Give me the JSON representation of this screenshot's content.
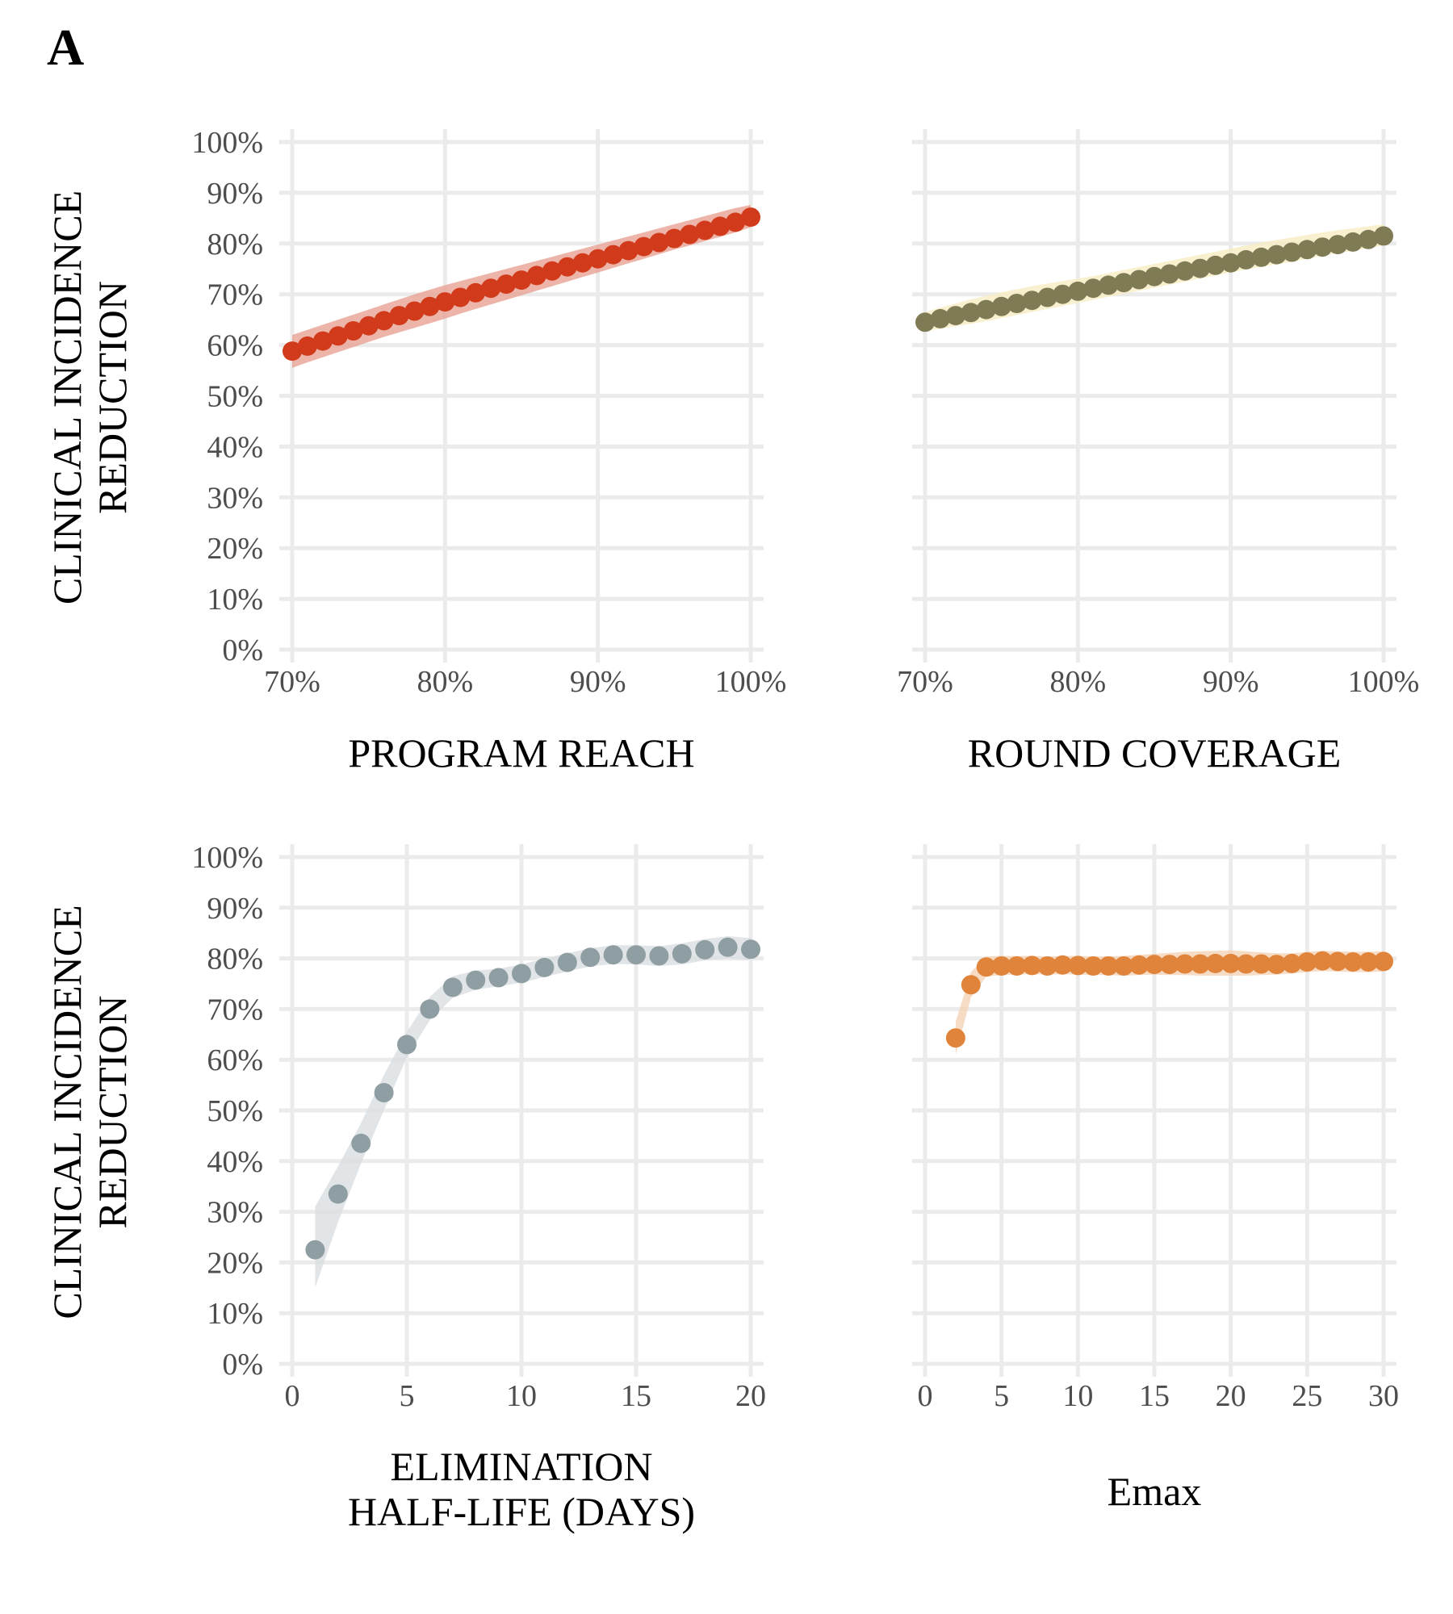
{
  "figure": {
    "panel_label": "A",
    "ylabel_lines": [
      "CLINICAL INCIDENCE",
      "REDUCTION"
    ]
  },
  "chart_data": [
    {
      "id": "program-reach",
      "type": "scatter",
      "xlabel": [
        "PROGRAM REACH"
      ],
      "ylabel": [
        "CLINICAL INCIDENCE",
        "REDUCTION"
      ],
      "xlim": [
        70,
        100
      ],
      "ylim": [
        0,
        100
      ],
      "x_ticks": [
        70,
        80,
        90,
        100
      ],
      "x_tick_labels": [
        "70%",
        "80%",
        "90%",
        "100%"
      ],
      "y_ticks": [
        0,
        10,
        20,
        30,
        40,
        50,
        60,
        70,
        80,
        90,
        100
      ],
      "y_tick_labels": [
        "0%",
        "10%",
        "20%",
        "30%",
        "40%",
        "50%",
        "60%",
        "70%",
        "80%",
        "90%",
        "100%"
      ],
      "grid": true,
      "color": "#d13a1a",
      "band_color": "#e8a293",
      "x": [
        70,
        71,
        72,
        73,
        74,
        75,
        76,
        77,
        78,
        79,
        80,
        81,
        82,
        83,
        84,
        85,
        86,
        87,
        88,
        89,
        90,
        91,
        92,
        93,
        94,
        95,
        96,
        97,
        98,
        99,
        100
      ],
      "y": [
        58.8,
        59.8,
        60.8,
        61.8,
        62.8,
        63.8,
        64.8,
        65.8,
        66.7,
        67.6,
        68.5,
        69.4,
        70.3,
        71.2,
        72.0,
        72.8,
        73.7,
        74.6,
        75.4,
        76.2,
        77.0,
        77.8,
        78.6,
        79.4,
        80.2,
        81.0,
        81.8,
        82.6,
        83.4,
        84.2,
        85.2
      ],
      "lower": [
        55.5,
        56.6,
        57.6,
        58.6,
        59.6,
        60.6,
        61.6,
        62.5,
        63.4,
        64.3,
        65.2,
        66.2,
        67.1,
        68.0,
        68.9,
        69.8,
        70.7,
        71.6,
        72.5,
        73.4,
        74.3,
        75.2,
        76.1,
        77.0,
        77.9,
        78.8,
        79.6,
        80.5,
        81.3,
        82.2,
        83.2
      ],
      "upper": [
        62.0,
        63.0,
        64.0,
        65.0,
        66.0,
        67.0,
        68.0,
        69.0,
        70.0,
        70.9,
        71.8,
        72.6,
        73.4,
        74.2,
        75.0,
        75.8,
        76.6,
        77.4,
        78.2,
        79.0,
        79.8,
        80.6,
        81.4,
        82.2,
        83.0,
        83.8,
        84.6,
        85.4,
        86.2,
        87.0,
        87.6
      ]
    },
    {
      "id": "round-coverage",
      "type": "scatter",
      "xlabel": [
        "ROUND COVERAGE"
      ],
      "ylabel": [],
      "xlim": [
        70,
        100
      ],
      "ylim": [
        0,
        100
      ],
      "x_ticks": [
        70,
        80,
        90,
        100
      ],
      "x_tick_labels": [
        "70%",
        "80%",
        "90%",
        "100%"
      ],
      "y_ticks": [
        0,
        10,
        20,
        30,
        40,
        50,
        60,
        70,
        80,
        90,
        100
      ],
      "y_tick_labels": [],
      "grid": true,
      "color": "#7f7b55",
      "band_color": "#f7ecc4",
      "x": [
        70,
        71,
        72,
        73,
        74,
        75,
        76,
        77,
        78,
        79,
        80,
        81,
        82,
        83,
        84,
        85,
        86,
        87,
        88,
        89,
        90,
        91,
        92,
        93,
        94,
        95,
        96,
        97,
        98,
        99,
        100
      ],
      "y": [
        64.5,
        65.2,
        65.8,
        66.4,
        67.0,
        67.6,
        68.2,
        68.8,
        69.4,
        70.0,
        70.6,
        71.2,
        71.8,
        72.3,
        72.9,
        73.5,
        74.0,
        74.6,
        75.1,
        75.7,
        76.2,
        76.8,
        77.3,
        77.8,
        78.3,
        78.8,
        79.3,
        79.8,
        80.3,
        80.8,
        81.5
      ],
      "lower": [
        62.8,
        63.2,
        63.7,
        64.2,
        64.7,
        65.3,
        65.9,
        66.5,
        67.1,
        67.7,
        68.3,
        68.9,
        69.5,
        70.1,
        70.7,
        71.3,
        71.9,
        72.5,
        73.1,
        73.7,
        74.3,
        74.9,
        75.4,
        75.9,
        76.4,
        77.0,
        77.6,
        78.1,
        78.6,
        79.1,
        79.6
      ],
      "upper": [
        66.5,
        67.4,
        68.2,
        69.0,
        69.7,
        70.4,
        71.0,
        71.6,
        72.1,
        72.6,
        73.1,
        73.6,
        74.2,
        74.8,
        75.4,
        76.0,
        76.6,
        77.2,
        77.8,
        78.4,
        79.0,
        79.6,
        80.2,
        80.7,
        81.2,
        81.7,
        82.2,
        82.6,
        83.0,
        83.4,
        83.8
      ]
    },
    {
      "id": "elimination-half-life",
      "type": "scatter",
      "xlabel": [
        "ELIMINATION",
        "HALF-LIFE  (DAYS)"
      ],
      "ylabel": [
        "CLINICAL INCIDENCE",
        "REDUCTION"
      ],
      "xlim": [
        0,
        20
      ],
      "ylim": [
        0,
        100
      ],
      "x_ticks": [
        0,
        5,
        10,
        15,
        20
      ],
      "x_tick_labels": [
        "0",
        "5",
        "10",
        "15",
        "20"
      ],
      "y_ticks": [
        0,
        10,
        20,
        30,
        40,
        50,
        60,
        70,
        80,
        90,
        100
      ],
      "y_tick_labels": [
        "0%",
        "10%",
        "20%",
        "30%",
        "40%",
        "50%",
        "60%",
        "70%",
        "80%",
        "90%",
        "100%"
      ],
      "grid": true,
      "color": "#8f9ea3",
      "band_color": "#d9dfe1",
      "x": [
        1,
        2,
        3,
        4,
        5,
        6,
        7,
        8,
        9,
        10,
        11,
        12,
        13,
        14,
        15,
        16,
        17,
        18,
        19,
        20
      ],
      "y": [
        22.5,
        33.5,
        43.5,
        53.5,
        63.0,
        70.0,
        74.3,
        75.7,
        76.2,
        77.0,
        78.2,
        79.2,
        80.2,
        80.7,
        80.7,
        80.5,
        80.9,
        81.7,
        82.2,
        81.8
      ],
      "lower": [
        15.0,
        28.0,
        39.5,
        50.0,
        60.5,
        67.8,
        72.2,
        73.8,
        74.5,
        75.2,
        76.3,
        77.4,
        78.4,
        78.9,
        78.8,
        78.5,
        78.8,
        79.6,
        80.0,
        79.7
      ],
      "upper": [
        31.0,
        39.0,
        47.5,
        57.0,
        65.5,
        72.4,
        76.5,
        77.6,
        78.0,
        78.8,
        80.0,
        81.0,
        82.0,
        82.6,
        82.6,
        82.4,
        83.0,
        83.8,
        84.4,
        84.0
      ]
    },
    {
      "id": "emax",
      "type": "scatter",
      "xlabel": [
        "Emax"
      ],
      "ylabel": [],
      "xlim": [
        0,
        30
      ],
      "ylim": [
        0,
        100
      ],
      "x_ticks": [
        0,
        5,
        10,
        15,
        20,
        25,
        30
      ],
      "x_tick_labels": [
        "0",
        "5",
        "10",
        "15",
        "20",
        "25",
        "30"
      ],
      "y_ticks": [
        0,
        10,
        20,
        30,
        40,
        50,
        60,
        70,
        80,
        90,
        100
      ],
      "y_tick_labels": [],
      "grid": true,
      "color": "#e0843b",
      "band_color": "#f5d3b6",
      "x": [
        2,
        3,
        4,
        5,
        6,
        7,
        8,
        9,
        10,
        11,
        12,
        13,
        14,
        15,
        16,
        17,
        18,
        19,
        20,
        21,
        22,
        23,
        24,
        25,
        26,
        27,
        28,
        29,
        30
      ],
      "y": [
        64.3,
        74.8,
        78.3,
        78.5,
        78.5,
        78.6,
        78.5,
        78.7,
        78.6,
        78.5,
        78.5,
        78.5,
        78.7,
        78.8,
        78.8,
        78.9,
        78.9,
        79.0,
        79.0,
        78.9,
        78.9,
        78.8,
        79.0,
        79.3,
        79.5,
        79.4,
        79.3,
        79.3,
        79.4
      ],
      "lower": [
        61.0,
        72.3,
        76.4,
        76.7,
        76.8,
        76.9,
        76.8,
        76.9,
        76.8,
        76.7,
        76.7,
        76.6,
        76.7,
        76.8,
        76.7,
        76.7,
        76.6,
        76.6,
        76.6,
        76.6,
        76.7,
        76.8,
        77.0,
        77.3,
        77.5,
        77.4,
        77.3,
        77.3,
        77.4
      ],
      "upper": [
        67.5,
        77.3,
        80.4,
        80.5,
        80.5,
        80.5,
        80.4,
        80.5,
        80.5,
        80.4,
        80.4,
        80.5,
        80.7,
        80.9,
        81.1,
        81.3,
        81.4,
        81.5,
        81.6,
        81.4,
        81.2,
        81.0,
        81.0,
        81.3,
        81.5,
        81.4,
        81.3,
        81.3,
        81.4
      ]
    }
  ]
}
